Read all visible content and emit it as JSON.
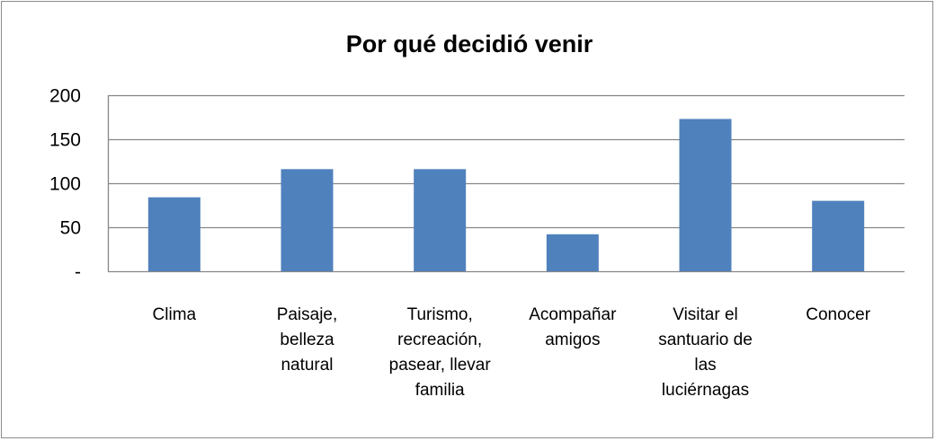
{
  "chart_data": {
    "type": "bar",
    "title": "Por qué decidió venir",
    "categories": [
      [
        "Clima"
      ],
      [
        "Paisaje,",
        "belleza",
        "natural"
      ],
      [
        "Turismo,",
        "recreación,",
        "pasear, llevar",
        "familia"
      ],
      [
        "Acompañar",
        "amigos"
      ],
      [
        "Visitar el",
        "santuario de",
        "las",
        "luciérnagas"
      ],
      [
        "Conocer"
      ]
    ],
    "values": [
      84,
      116,
      116,
      42,
      173,
      80
    ],
    "ylim": [
      0,
      200
    ],
    "yticks": [
      0,
      50,
      100,
      150,
      200
    ],
    "ytick_labels": [
      "-",
      "50",
      "100",
      "150",
      "200"
    ],
    "xlabel": "",
    "ylabel": "",
    "grid": true,
    "bar_color": "#4f81bd",
    "grid_color": "#868686"
  }
}
